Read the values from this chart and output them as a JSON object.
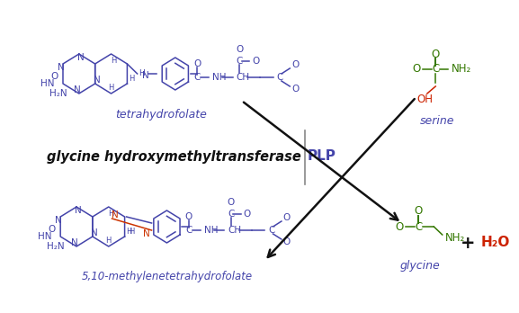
{
  "bg_color": "#ffffff",
  "col_blue": "#4444aa",
  "col_green": "#337700",
  "col_red": "#cc2200",
  "col_black": "#111111",
  "col_arr": "#222222",
  "enzyme_text": "glycine hydroxymethyltransferase",
  "plp_text": "PLP",
  "label_thf": "tetrahydrofolate",
  "label_mthf": "5,10-methylenetetrahydrofolate",
  "label_serine": "serine",
  "label_glycine": "glycine",
  "figsize": [
    5.77,
    3.48
  ],
  "dpi": 100
}
